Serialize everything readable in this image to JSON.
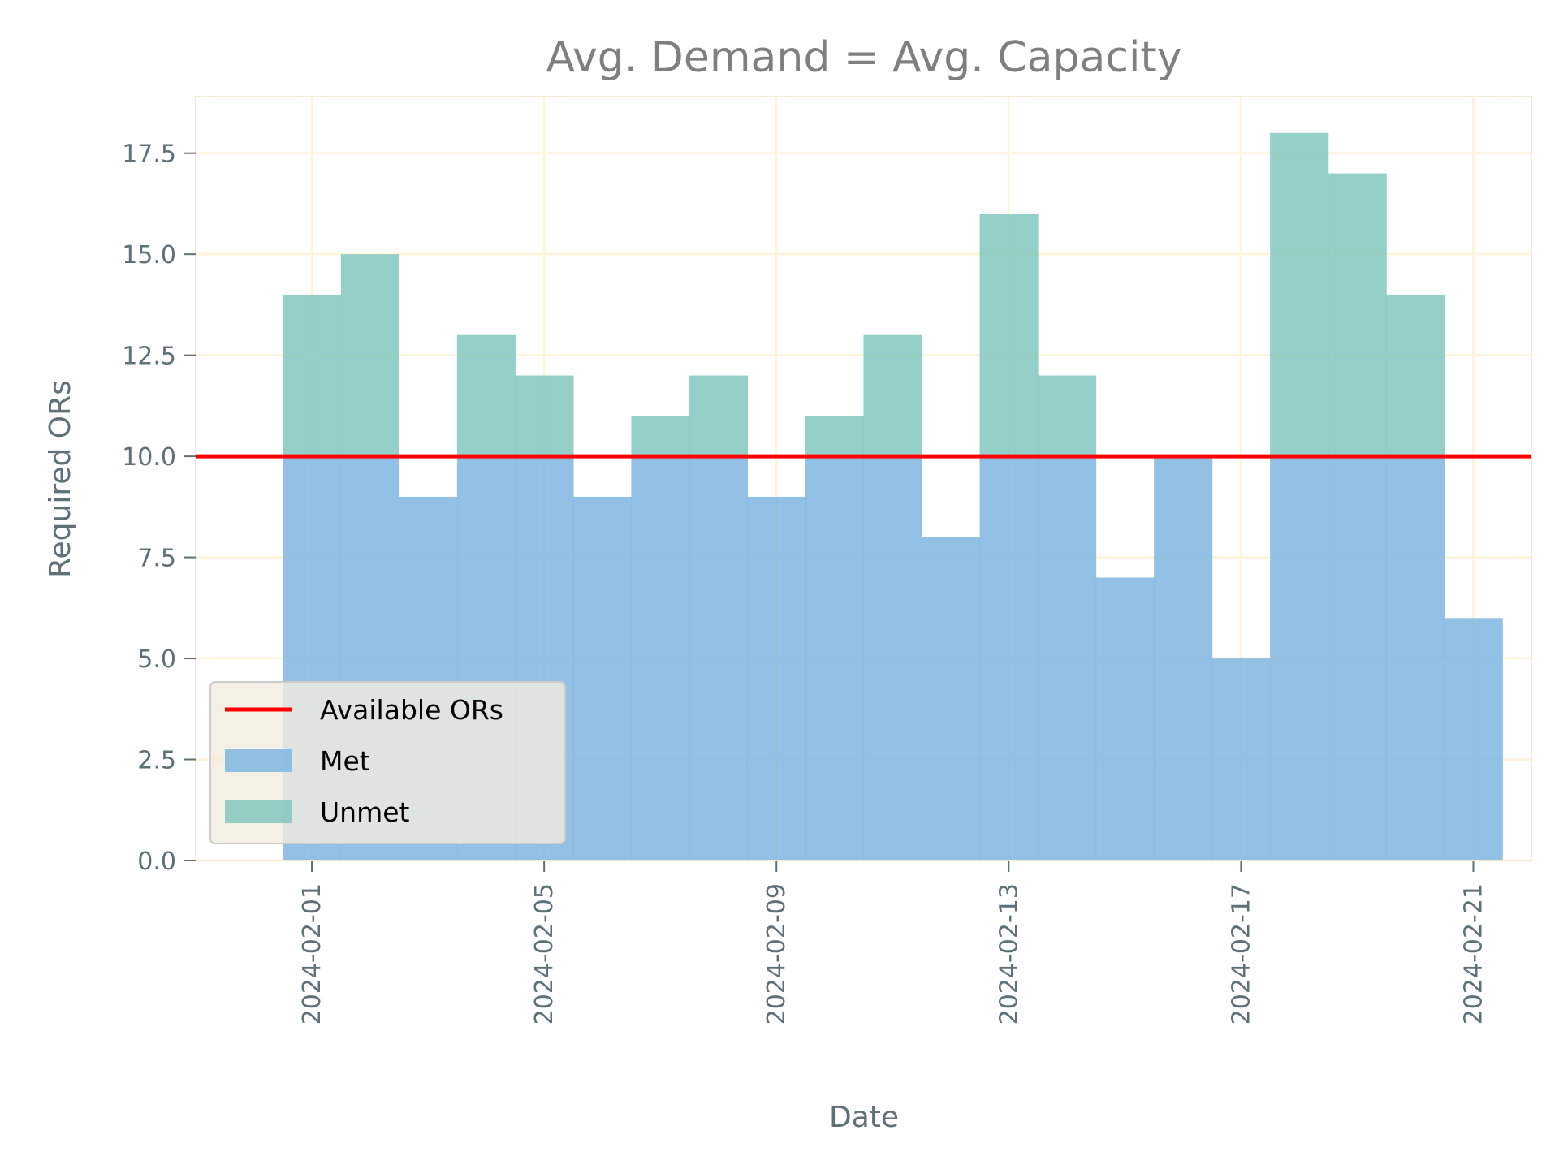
{
  "chart_data": {
    "type": "bar",
    "title": "Avg. Demand = Avg. Capacity",
    "xlabel": "Date",
    "ylabel": "Required ORs",
    "dates": [
      "2024-02-01",
      "2024-02-02",
      "2024-02-03",
      "2024-02-04",
      "2024-02-05",
      "2024-02-06",
      "2024-02-07",
      "2024-02-08",
      "2024-02-09",
      "2024-02-10",
      "2024-02-11",
      "2024-02-12",
      "2024-02-13",
      "2024-02-14",
      "2024-02-15",
      "2024-02-16",
      "2024-02-17",
      "2024-02-18",
      "2024-02-19",
      "2024-02-20",
      "2024-02-21"
    ],
    "demand": [
      14,
      15,
      9,
      13,
      12,
      9,
      11,
      12,
      9,
      11,
      13,
      8,
      16,
      12,
      7,
      10,
      5,
      18,
      17,
      14,
      6
    ],
    "capacity": 10,
    "series": [
      {
        "name": "Met",
        "color": "#7fb6e0",
        "values": [
          10,
          10,
          9,
          10,
          10,
          9,
          10,
          10,
          9,
          10,
          10,
          8,
          10,
          10,
          7,
          10,
          5,
          10,
          10,
          10,
          6
        ]
      },
      {
        "name": "Unmet",
        "color": "#82c8be",
        "values": [
          4,
          5,
          0,
          3,
          2,
          0,
          1,
          2,
          0,
          1,
          3,
          0,
          6,
          2,
          0,
          0,
          0,
          8,
          7,
          4,
          0
        ]
      }
    ],
    "line": {
      "name": "Available ORs",
      "value": 10,
      "color": "#ff0000"
    },
    "x_tick_labels": [
      "2024-02-01",
      "2024-02-05",
      "2024-02-09",
      "2024-02-13",
      "2024-02-17",
      "2024-02-21"
    ],
    "y_ticks": [
      0.0,
      2.5,
      5.0,
      7.5,
      10.0,
      12.5,
      15.0,
      17.5
    ],
    "y_tick_labels": [
      "0.0",
      "2.5",
      "5.0",
      "7.5",
      "10.0",
      "12.5",
      "15.0",
      "17.5"
    ],
    "ylim": [
      0,
      18.9
    ],
    "xlim": [
      "2024-01-30",
      "2024-02-22"
    ],
    "grid": true,
    "legend_position": "lower-left"
  }
}
